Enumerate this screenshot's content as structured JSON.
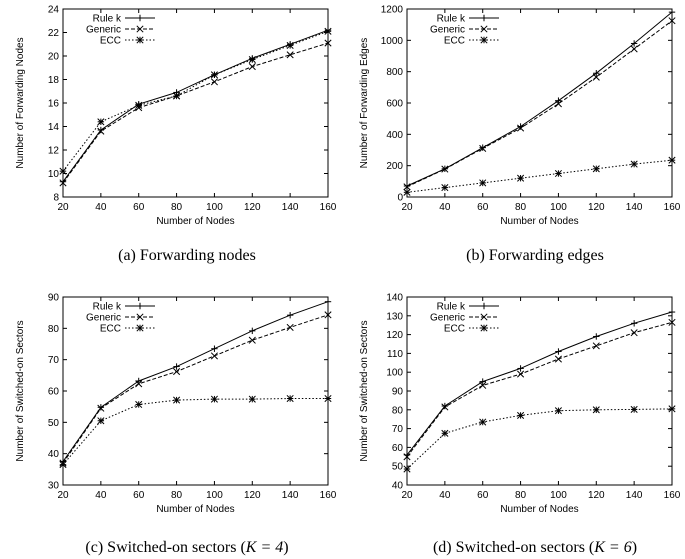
{
  "chart_data": [
    {
      "type": "line",
      "caption": "(a)  Forwarding nodes",
      "xlabel": "Number of Nodes",
      "ylabel": "Number of Forwarding Nodes",
      "x": [
        20,
        40,
        60,
        80,
        100,
        120,
        140,
        160
      ],
      "xlim": [
        20,
        160
      ],
      "ylim": [
        8,
        24
      ],
      "yticks": [
        8,
        10,
        12,
        14,
        16,
        18,
        20,
        22,
        24
      ],
      "legend_position": "top-left",
      "series": [
        {
          "name": "Rule k",
          "marker": "plus",
          "dash": "solid",
          "values": [
            9.3,
            13.7,
            15.9,
            16.9,
            18.4,
            19.8,
            21.0,
            22.2
          ]
        },
        {
          "name": "Generic",
          "marker": "x",
          "dash": "dashed",
          "values": [
            9.2,
            13.6,
            15.6,
            16.6,
            17.8,
            19.1,
            20.1,
            21.1
          ]
        },
        {
          "name": "ECC",
          "marker": "star",
          "dash": "dotted",
          "values": [
            10.2,
            14.4,
            15.8,
            16.6,
            18.4,
            19.7,
            20.9,
            22.1
          ]
        }
      ]
    },
    {
      "type": "line",
      "caption": "(b)  Forwarding edges",
      "xlabel": "Number of Nodes",
      "ylabel": "Number of Forwarding Edges",
      "x": [
        20,
        40,
        60,
        80,
        100,
        120,
        140,
        160
      ],
      "xlim": [
        20,
        160
      ],
      "ylim": [
        0,
        1200
      ],
      "yticks": [
        0,
        200,
        400,
        600,
        800,
        1000,
        1200
      ],
      "legend_position": "top-left",
      "series": [
        {
          "name": "Rule k",
          "marker": "plus",
          "dash": "solid",
          "values": [
            70,
            180,
            315,
            450,
            615,
            790,
            980,
            1180
          ]
        },
        {
          "name": "Generic",
          "marker": "x",
          "dash": "dashed",
          "values": [
            65,
            178,
            310,
            440,
            595,
            765,
            945,
            1125
          ]
        },
        {
          "name": "ECC",
          "marker": "star",
          "dash": "dotted",
          "values": [
            30,
            60,
            90,
            120,
            150,
            180,
            210,
            235
          ]
        }
      ]
    },
    {
      "type": "line",
      "caption": "(c)  Switched-on sectors (",
      "caption_math": "K = 4",
      "caption_end": ")",
      "xlabel": "Number of Nodes",
      "ylabel": "Number of Switched-on Sectors",
      "x": [
        20,
        40,
        60,
        80,
        100,
        120,
        140,
        160
      ],
      "xlim": [
        20,
        160
      ],
      "ylim": [
        30,
        90
      ],
      "yticks": [
        30,
        40,
        50,
        60,
        70,
        80,
        90
      ],
      "legend_position": "top-left",
      "series": [
        {
          "name": "Rule k",
          "marker": "plus",
          "dash": "solid",
          "values": [
            37.5,
            54.8,
            63.2,
            67.8,
            73.5,
            79.2,
            84.2,
            88.5
          ]
        },
        {
          "name": "Generic",
          "marker": "x",
          "dash": "dashed",
          "values": [
            37.0,
            54.5,
            62.3,
            66.2,
            71.2,
            76.2,
            80.3,
            84.3
          ]
        },
        {
          "name": "ECC",
          "marker": "star",
          "dash": "dotted",
          "values": [
            36.5,
            50.5,
            55.7,
            57.1,
            57.4,
            57.4,
            57.6,
            57.6
          ]
        }
      ]
    },
    {
      "type": "line",
      "caption": "(d)  Switched-on sectors (",
      "caption_math": "K = 6",
      "caption_end": ")",
      "xlabel": "Number of Nodes",
      "ylabel": "Number of Switched-on Sectors",
      "x": [
        20,
        40,
        60,
        80,
        100,
        120,
        140,
        160
      ],
      "xlim": [
        20,
        160
      ],
      "ylim": [
        40,
        140
      ],
      "yticks": [
        40,
        50,
        60,
        70,
        80,
        90,
        100,
        110,
        120,
        130,
        140
      ],
      "legend_position": "top-left",
      "series": [
        {
          "name": "Rule k",
          "marker": "plus",
          "dash": "solid",
          "values": [
            56,
            82,
            95,
            102,
            111,
            119,
            126,
            132
          ]
        },
        {
          "name": "Generic",
          "marker": "x",
          "dash": "dashed",
          "values": [
            55,
            81.5,
            93,
            99,
            107,
            114,
            121,
            126.5
          ]
        },
        {
          "name": "ECC",
          "marker": "star",
          "dash": "dotted",
          "values": [
            48.5,
            67.5,
            73.5,
            77,
            79.5,
            80,
            80.2,
            80.5
          ]
        }
      ]
    }
  ]
}
